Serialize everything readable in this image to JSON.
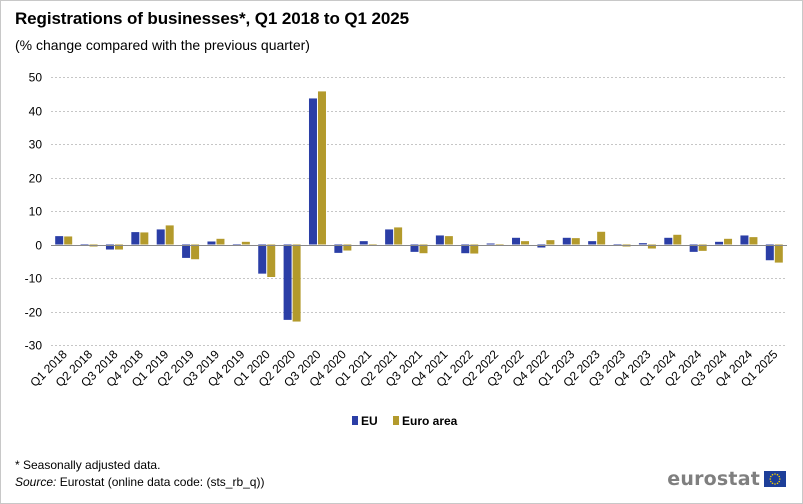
{
  "header": {
    "title": "Registrations of businesses*, Q1 2018 to Q1 2025",
    "subtitle": "(% change compared with the previous quarter)"
  },
  "footer": {
    "footnote": "* Seasonally adjusted data.",
    "source_label": "Source:",
    "source_text": " Eurostat (online data code: (sts_rb_q))",
    "brand": "eurostat"
  },
  "colors": {
    "eu": "#2b3ea6",
    "euro_area": "#b39a2c",
    "grid": "#c6c6c6",
    "axis": "#888888"
  },
  "chart_data": {
    "type": "bar",
    "title": "Registrations of businesses*, Q1 2018 to Q1 2025",
    "subtitle": "(% change compared with the previous quarter)",
    "xlabel": "",
    "ylabel": "",
    "ylim": [
      -30,
      50
    ],
    "yticks": [
      50,
      40,
      30,
      20,
      10,
      0,
      -10,
      -20,
      -30
    ],
    "grid": true,
    "legend_position": "bottom-center",
    "categories": [
      "Q1 2018",
      "Q2 2018",
      "Q3 2018",
      "Q4 2018",
      "Q1 2019",
      "Q2 2019",
      "Q3 2019",
      "Q4 2019",
      "Q1 2020",
      "Q2 2020",
      "Q3 2020",
      "Q4 2020",
      "Q1 2021",
      "Q2 2021",
      "Q3 2021",
      "Q4 2021",
      "Q1 2022",
      "Q2 2022",
      "Q3 2022",
      "Q4 2022",
      "Q1 2023",
      "Q2 2023",
      "Q3 2023",
      "Q4 2023",
      "Q1 2024",
      "Q2 2024",
      "Q3 2024",
      "Q4 2024",
      "Q1 2025"
    ],
    "series": [
      {
        "name": "EU",
        "values": [
          2.5,
          -0.3,
          -1.5,
          3.7,
          4.5,
          -4.0,
          0.9,
          -0.3,
          -8.7,
          -22.5,
          43.6,
          -2.5,
          1.0,
          4.5,
          -2.2,
          2.7,
          -2.6,
          0.3,
          2.0,
          -0.9,
          2.0,
          1.0,
          -0.3,
          0.4,
          2.0,
          -2.2,
          0.8,
          2.7,
          -4.7
        ]
      },
      {
        "name": "Euro area",
        "values": [
          2.4,
          -0.6,
          -1.5,
          3.6,
          5.7,
          -4.4,
          1.7,
          0.8,
          -9.7,
          -23.0,
          45.7,
          -1.8,
          -0.3,
          5.1,
          -2.6,
          2.5,
          -2.7,
          -0.3,
          1.0,
          1.3,
          1.9,
          3.8,
          -0.6,
          -1.2,
          2.9,
          -1.9,
          1.7,
          2.2,
          -5.4
        ]
      }
    ]
  }
}
